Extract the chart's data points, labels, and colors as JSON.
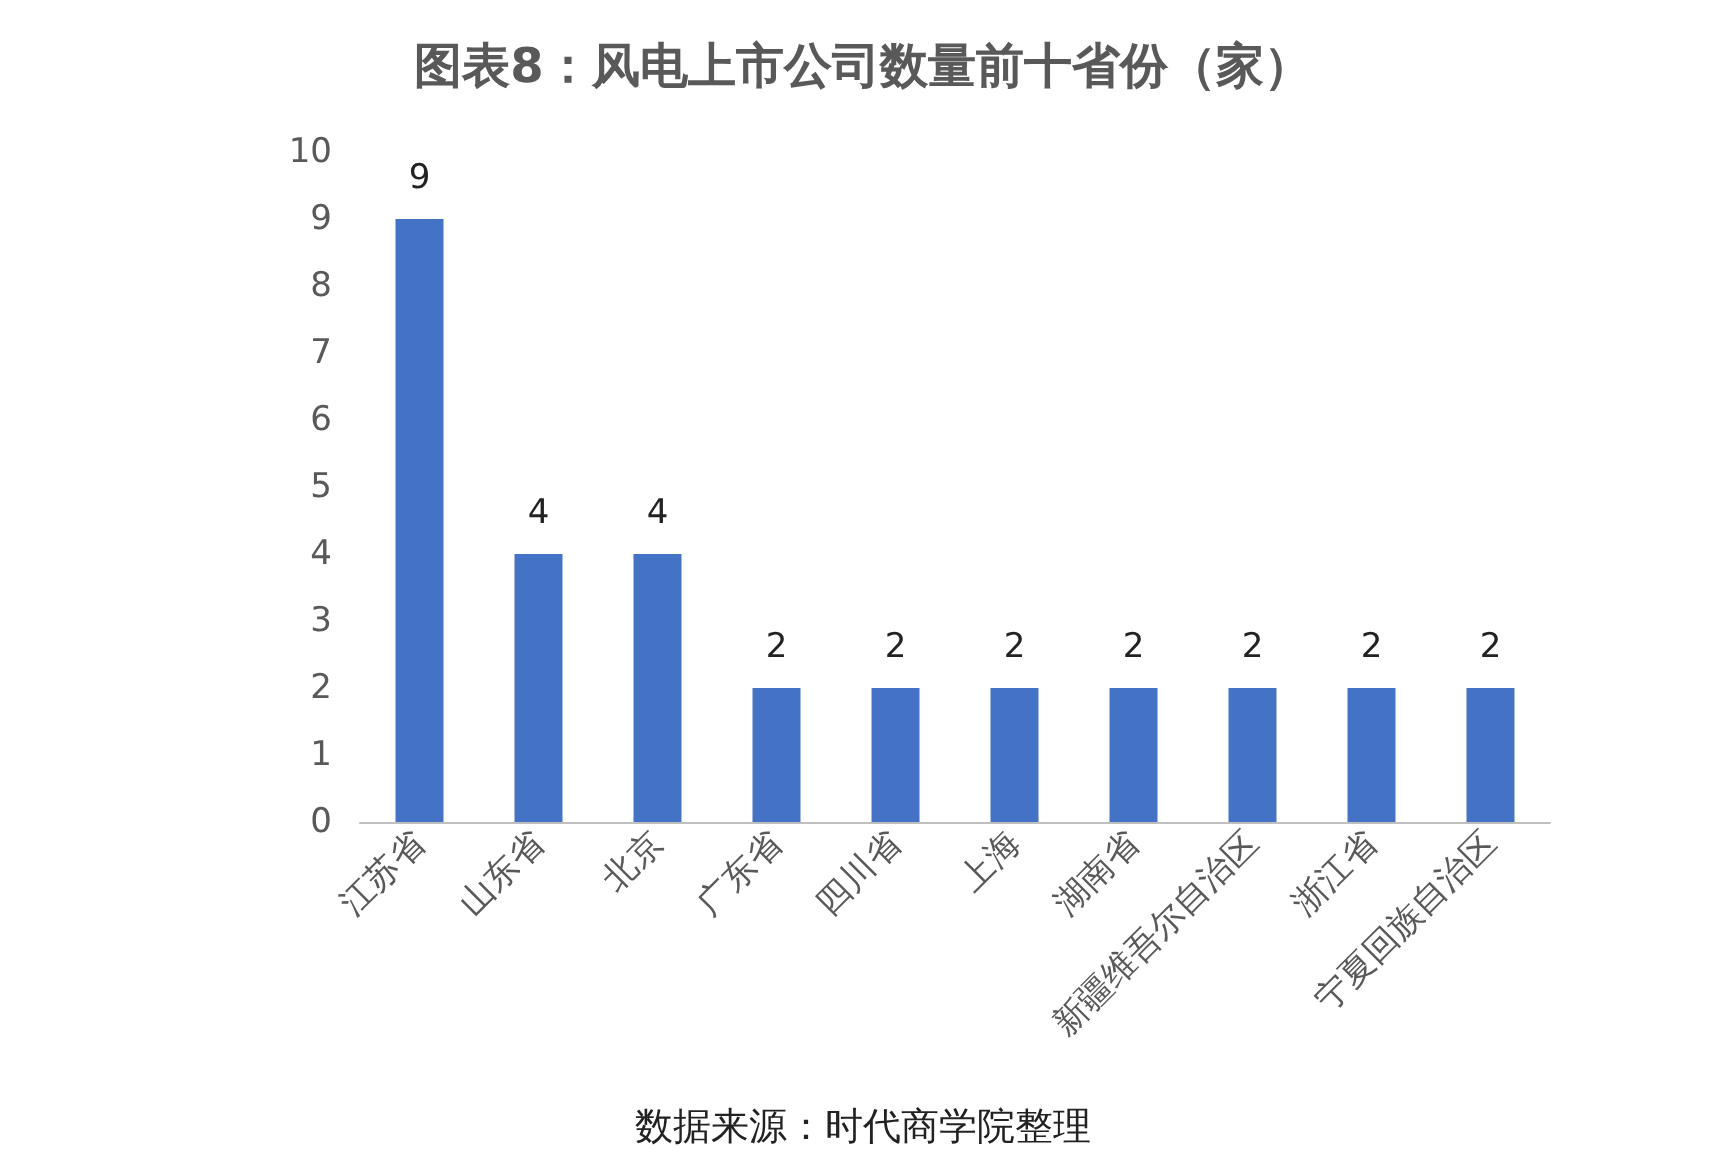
{
  "chart_data": {
    "type": "bar",
    "title": "图表8：风电上市公司数量前十省份（家）",
    "categories": [
      "江苏省",
      "山东省",
      "北京",
      "广东省",
      "四川省",
      "上海",
      "湖南省",
      "新疆维吾尔自治区",
      "浙江省",
      "宁夏回族自治区"
    ],
    "values": [
      9,
      4,
      4,
      2,
      2,
      2,
      2,
      2,
      2,
      2
    ],
    "color": "#4472c4",
    "ylim": [
      0,
      10
    ],
    "yticks": [
      0,
      1,
      2,
      3,
      4,
      5,
      6,
      7,
      8,
      9,
      10
    ],
    "grid": false,
    "data_labels": true,
    "annotations": [
      "数据来源：时代商学院整理"
    ]
  }
}
